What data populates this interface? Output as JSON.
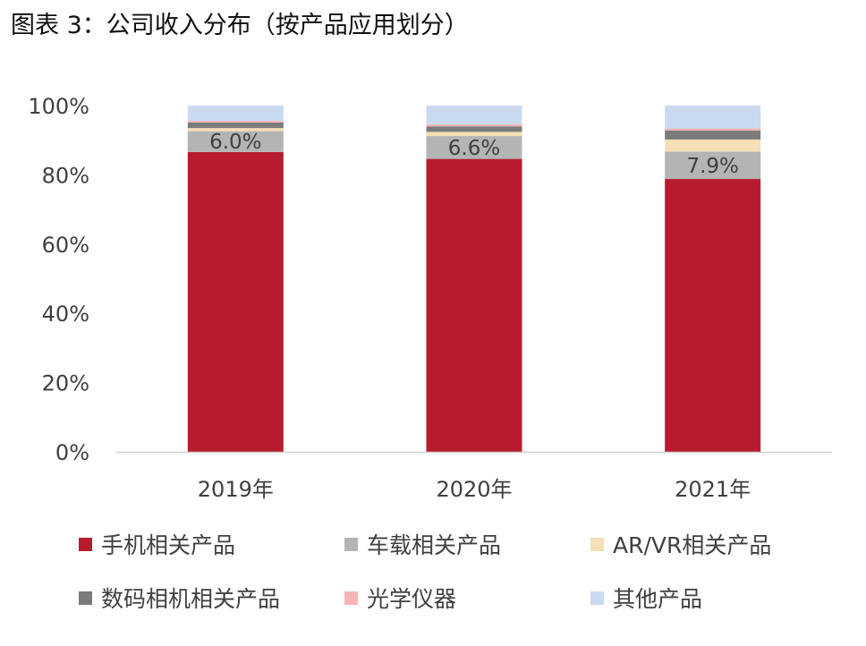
{
  "title": "图表 3：公司收入分布（按产品应用划分）",
  "chart_data": {
    "type": "bar",
    "stacked": true,
    "categories": [
      "2019年",
      "2020年",
      "2021年"
    ],
    "series": [
      {
        "name": "手机相关产品",
        "color": "#b71c2e",
        "values": [
          86.6,
          84.6,
          78.8
        ]
      },
      {
        "name": "车载相关产品",
        "color": "#b4b4b4",
        "values": [
          6.0,
          6.6,
          7.9
        ]
      },
      {
        "name": "AR/VR相关产品",
        "color": "#f4dfb6",
        "values": [
          0.9,
          1.2,
          3.5
        ]
      },
      {
        "name": "数码相机相关产品",
        "color": "#7b7b7b",
        "values": [
          1.6,
          1.6,
          2.6
        ]
      },
      {
        "name": "光学仪器",
        "color": "#f7b6b6",
        "values": [
          0.5,
          0.6,
          0.6
        ]
      },
      {
        "name": "其他产品",
        "color": "#c9daf0",
        "values": [
          4.4,
          5.4,
          6.6
        ]
      }
    ],
    "data_labels": {
      "series": "车载相关产品",
      "texts": [
        "6.0%",
        "6.6%",
        "7.9%"
      ]
    },
    "ylim": [
      0,
      100
    ],
    "yticks": [
      "0%",
      "20%",
      "40%",
      "60%",
      "80%",
      "100%"
    ],
    "grid": false,
    "legend_position": "bottom"
  }
}
